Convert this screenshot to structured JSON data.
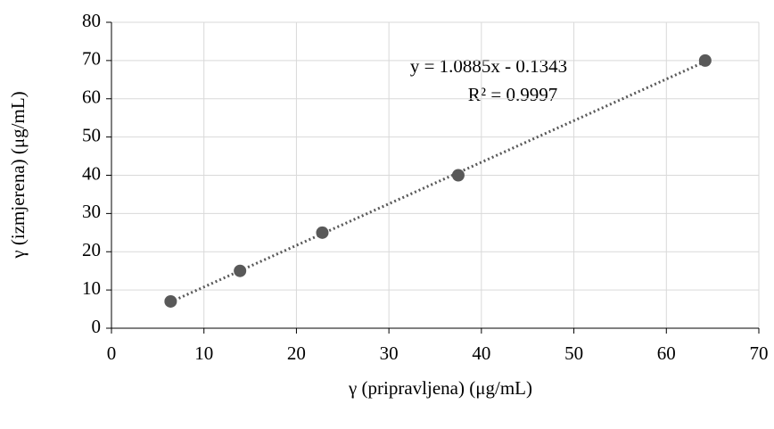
{
  "chart_data": {
    "type": "scatter",
    "x_label": "γ (pripravljena) (μg/mL)",
    "y_label": "γ (izmjerena) (μg/mL)",
    "x": [
      6.4,
      13.9,
      22.8,
      37.5,
      64.2
    ],
    "values": [
      7,
      15,
      25,
      40,
      70
    ],
    "color": "#595959",
    "xlim": [
      0,
      70
    ],
    "xticks": [
      0,
      10,
      20,
      30,
      40,
      50,
      60,
      70
    ],
    "ylim": [
      0,
      80
    ],
    "yticks": [
      0,
      10,
      20,
      30,
      40,
      50,
      60,
      70,
      80
    ],
    "grid": true,
    "trendline": {
      "equation": "y = 1.0885x - 0.1343",
      "r_squared": "R² = 0.9997"
    }
  }
}
